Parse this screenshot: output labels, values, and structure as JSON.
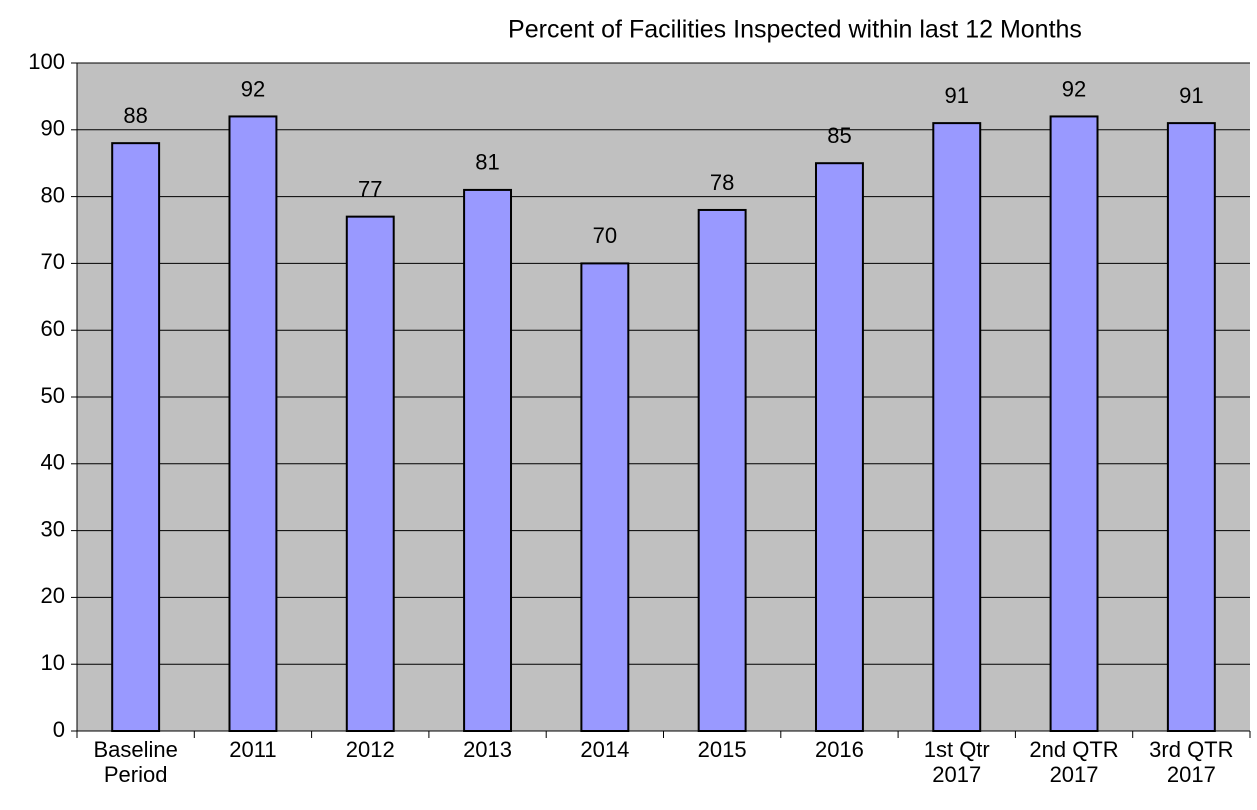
{
  "chart_data": {
    "type": "bar",
    "title": "Percent of Facilities Inspected within last 12 Months",
    "categories": [
      "Baseline Period",
      "2011",
      "2012",
      "2013",
      "2014",
      "2015",
      "2016",
      "1st Qtr 2017",
      "2nd QTR 2017",
      "3rd QTR 2017"
    ],
    "values": [
      88,
      92,
      77,
      81,
      70,
      78,
      85,
      91,
      92,
      91
    ],
    "color": "#9999ff",
    "ylim": [
      0,
      100
    ],
    "yticks": [
      0,
      10,
      20,
      30,
      40,
      50,
      60,
      70,
      80,
      90,
      100
    ],
    "grid": true
  }
}
